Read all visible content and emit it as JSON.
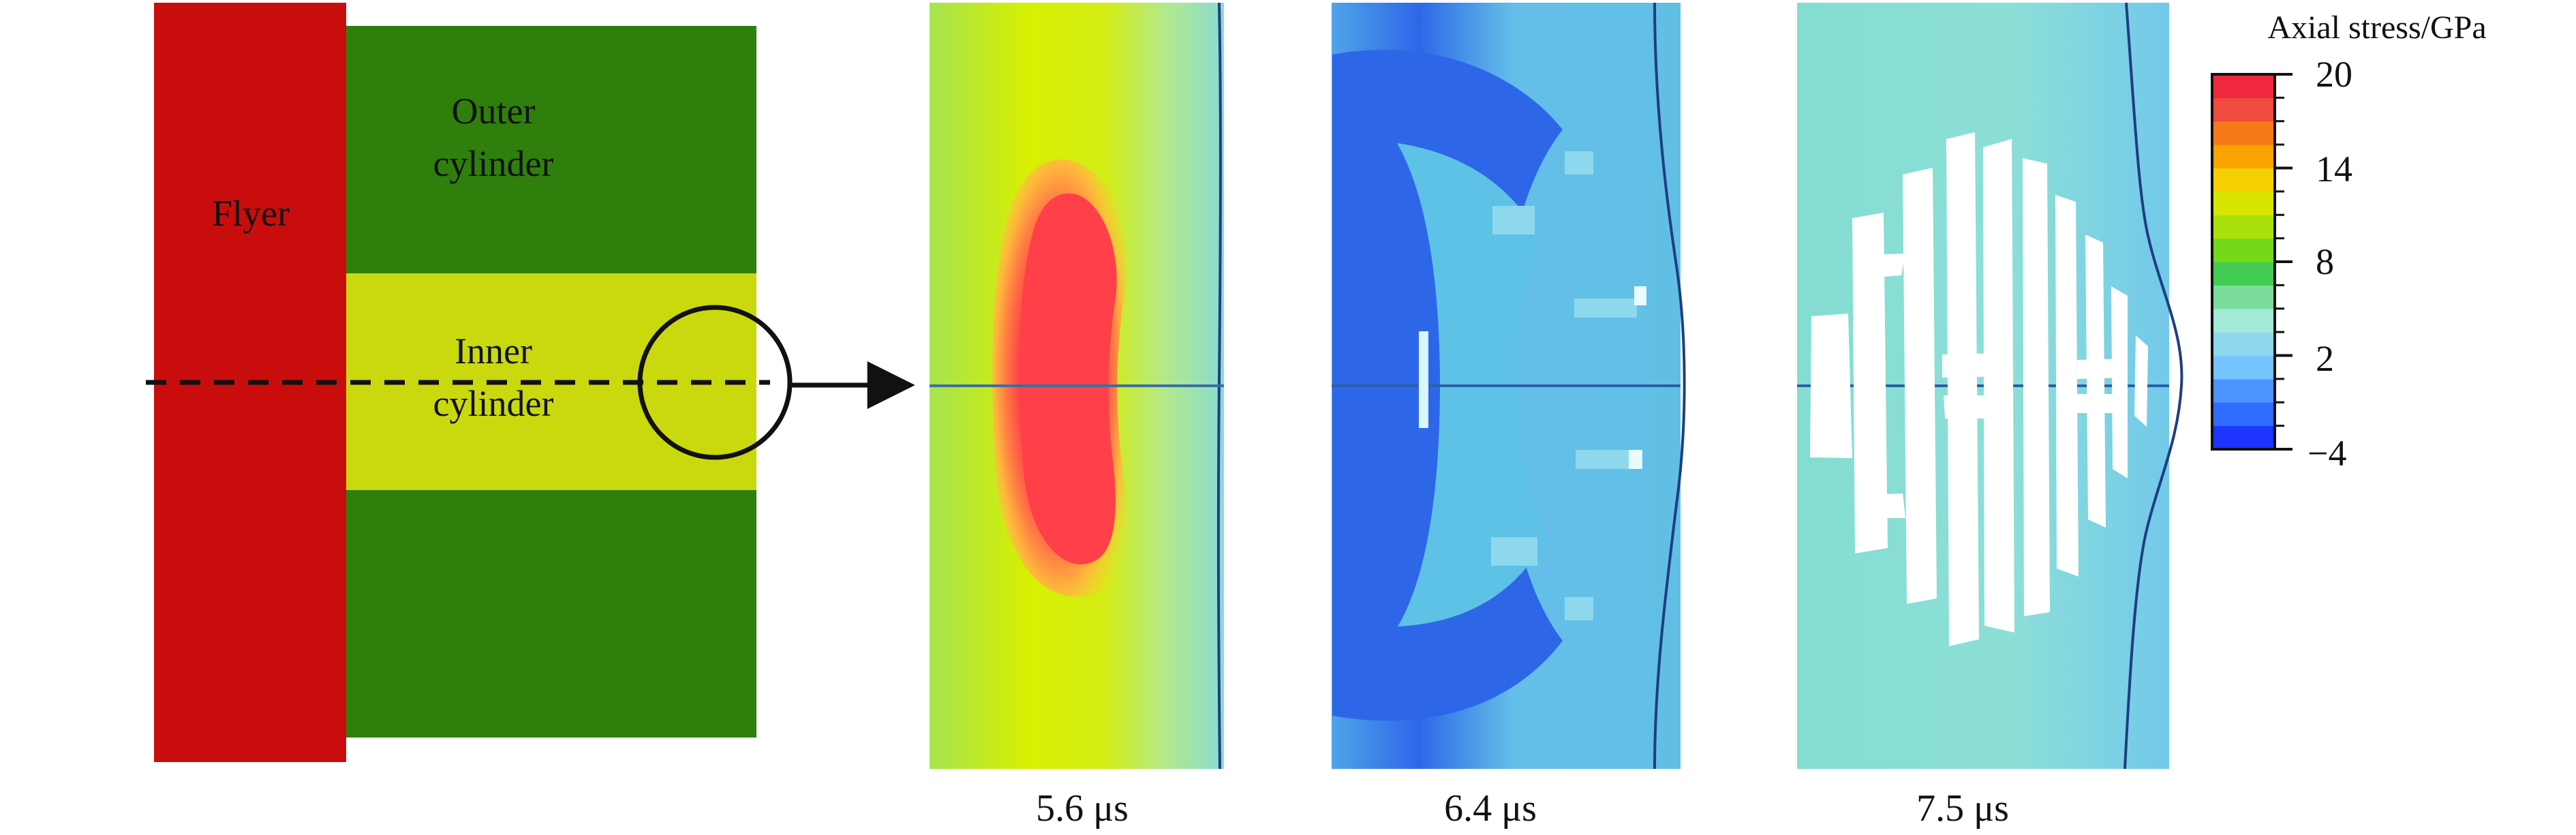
{
  "schematic": {
    "flyer_label": "Flyer",
    "outer_cylinder_label_line1": "Outer",
    "outer_cylinder_label_line2": "cylinder",
    "inner_cylinder_label_line1": "Inner",
    "inner_cylinder_label_line2": "cylinder",
    "colors": {
      "flyer": "#c90d0d",
      "outer_cylinder": "#2f7f0d",
      "inner_cylinder": "#c9d90e"
    }
  },
  "snapshots": [
    {
      "time_label": "5.6 μs",
      "stress_description": "high axial stress red zone"
    },
    {
      "time_label": "6.4 μs",
      "stress_description": "low axial stress blue field"
    },
    {
      "time_label": "7.5 μs",
      "stress_description": "cyan field with white fracture bands"
    }
  ],
  "colorbar": {
    "title": "Axial stress/GPa",
    "ticks": [
      "20",
      "14",
      "8",
      "2",
      "−4"
    ],
    "min": -4,
    "max": 20,
    "colors": [
      "#1f33ff",
      "#2f6bff",
      "#4d93ff",
      "#75c3ff",
      "#8ed8ee",
      "#a3ead8",
      "#7bdc9d",
      "#42cc53",
      "#73d91a",
      "#a9e20b",
      "#d8e500",
      "#f6d000",
      "#f8a300",
      "#f67b18",
      "#ef4b3f",
      "#ef283d"
    ]
  }
}
